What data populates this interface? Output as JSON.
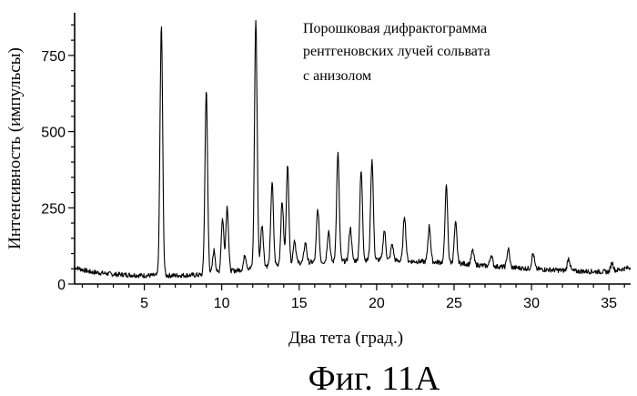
{
  "chart_data": {
    "type": "line",
    "title": "",
    "annotation": [
      "Порошковая дифрактограмма",
      "рентгеновских лучей сольвата",
      "с анизолом"
    ],
    "xlabel": "Два тета (град.)",
    "ylabel": "Интенсивность (импульсы)",
    "figure_label": "Фиг. 11А",
    "xlim": [
      0.5,
      36.4
    ],
    "ylim": [
      0,
      890
    ],
    "xticks": [
      5,
      10,
      15,
      20,
      25,
      30,
      35
    ],
    "yticks": [
      0,
      250,
      500,
      750
    ],
    "grid": false,
    "legend": "none",
    "baseline": [
      [
        0.5,
        55
      ],
      [
        1.5,
        40
      ],
      [
        3,
        32
      ],
      [
        5,
        28
      ],
      [
        5.8,
        28
      ],
      [
        7,
        28
      ],
      [
        8.7,
        30
      ],
      [
        11,
        45
      ],
      [
        13,
        60
      ],
      [
        15,
        70
      ],
      [
        18,
        75
      ],
      [
        20,
        80
      ],
      [
        22,
        75
      ],
      [
        25,
        70
      ],
      [
        27,
        60
      ],
      [
        30,
        50
      ],
      [
        33,
        42
      ],
      [
        35,
        40
      ],
      [
        36.4,
        55
      ]
    ],
    "peaks": [
      {
        "x": 6.1,
        "y": 845
      },
      {
        "x": 9.0,
        "y": 635
      },
      {
        "x": 9.5,
        "y": 110
      },
      {
        "x": 10.05,
        "y": 215
      },
      {
        "x": 10.35,
        "y": 255
      },
      {
        "x": 11.5,
        "y": 95
      },
      {
        "x": 12.2,
        "y": 865
      },
      {
        "x": 12.6,
        "y": 195
      },
      {
        "x": 13.25,
        "y": 335
      },
      {
        "x": 13.9,
        "y": 270
      },
      {
        "x": 14.25,
        "y": 385
      },
      {
        "x": 14.7,
        "y": 145
      },
      {
        "x": 15.4,
        "y": 135
      },
      {
        "x": 16.2,
        "y": 245
      },
      {
        "x": 16.9,
        "y": 175
      },
      {
        "x": 17.5,
        "y": 430
      },
      {
        "x": 18.3,
        "y": 185
      },
      {
        "x": 19.0,
        "y": 370
      },
      {
        "x": 19.7,
        "y": 410
      },
      {
        "x": 20.5,
        "y": 175
      },
      {
        "x": 21.0,
        "y": 130
      },
      {
        "x": 21.8,
        "y": 225
      },
      {
        "x": 23.4,
        "y": 190
      },
      {
        "x": 24.5,
        "y": 320
      },
      {
        "x": 25.1,
        "y": 200
      },
      {
        "x": 26.2,
        "y": 110
      },
      {
        "x": 27.4,
        "y": 95
      },
      {
        "x": 28.5,
        "y": 115
      },
      {
        "x": 30.1,
        "y": 100
      },
      {
        "x": 32.4,
        "y": 85
      },
      {
        "x": 35.2,
        "y": 70
      }
    ]
  }
}
